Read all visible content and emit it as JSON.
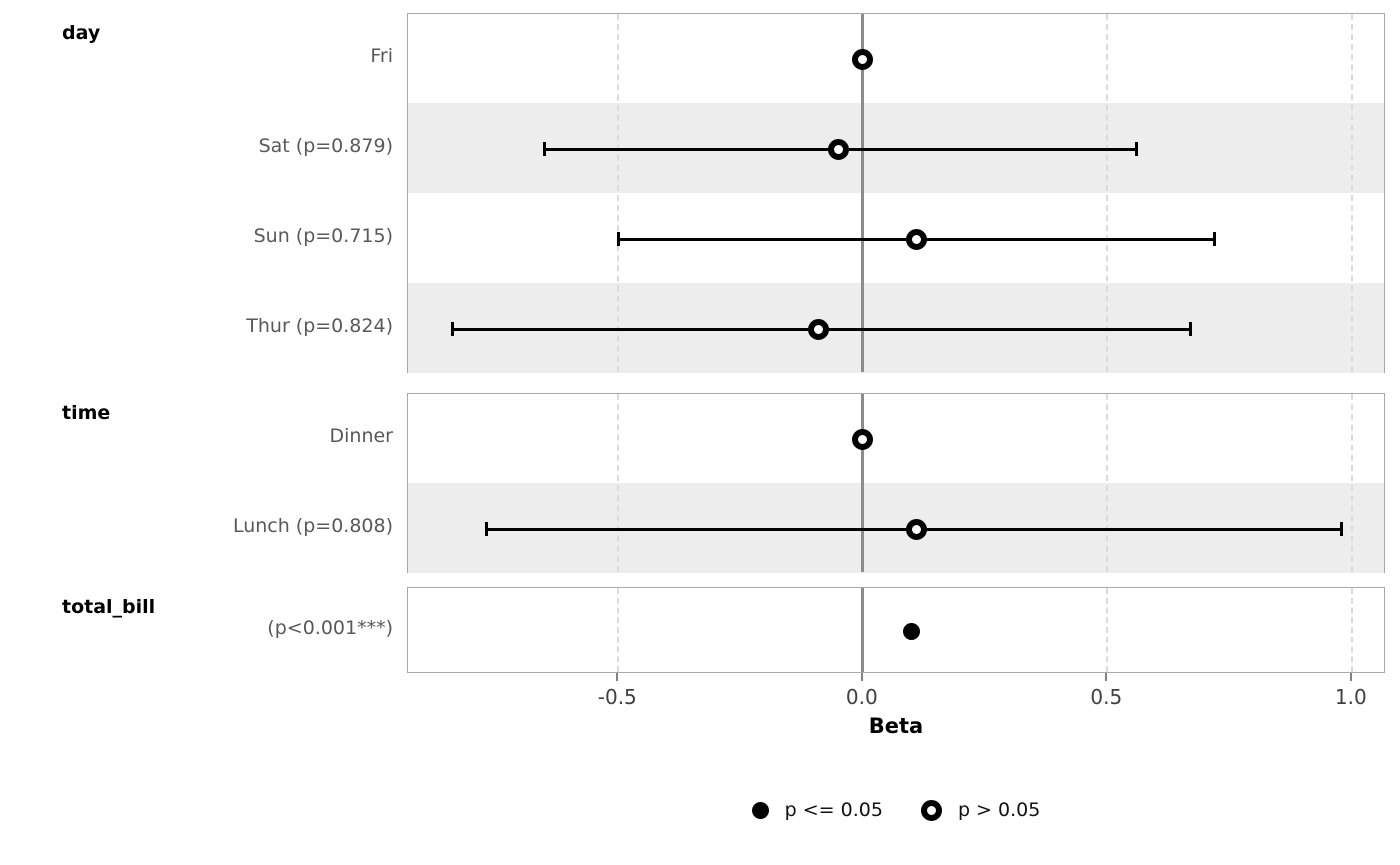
{
  "chart_data": {
    "type": "forest",
    "title": "",
    "xlabel": "Beta",
    "xlim": [
      -0.93,
      1.07
    ],
    "grid": "dashed-vertical",
    "reference_line": 0.0,
    "x_ticks": [
      {
        "value": -0.5,
        "label": "-0.5"
      },
      {
        "value": 0.0,
        "label": "0.0"
      },
      {
        "value": 0.5,
        "label": "0.5"
      },
      {
        "value": 1.0,
        "label": "1.0"
      }
    ],
    "groups": [
      {
        "label": "day",
        "rows": [
          {
            "label": "Fri",
            "estimate": 0.0,
            "ci_low": null,
            "ci_high": null,
            "p_value": null,
            "significant": false,
            "reference": true
          },
          {
            "label": "Sat (p=0.879)",
            "estimate": -0.05,
            "ci_low": -0.65,
            "ci_high": 0.56,
            "p_value": 0.879,
            "significant": false,
            "reference": false
          },
          {
            "label": "Sun (p=0.715)",
            "estimate": 0.11,
            "ci_low": -0.5,
            "ci_high": 0.72,
            "p_value": 0.715,
            "significant": false,
            "reference": false
          },
          {
            "label": "Thur (p=0.824)",
            "estimate": -0.09,
            "ci_low": -0.84,
            "ci_high": 0.67,
            "p_value": 0.824,
            "significant": false,
            "reference": false
          }
        ]
      },
      {
        "label": "time",
        "rows": [
          {
            "label": "Dinner",
            "estimate": 0.0,
            "ci_low": null,
            "ci_high": null,
            "p_value": null,
            "significant": false,
            "reference": true
          },
          {
            "label": "Lunch (p=0.808)",
            "estimate": 0.11,
            "ci_low": -0.77,
            "ci_high": 0.98,
            "p_value": 0.808,
            "significant": false,
            "reference": false
          }
        ]
      },
      {
        "label": "total_bill",
        "rows": [
          {
            "label": "(p<0.001***)",
            "estimate": 0.1,
            "ci_low": null,
            "ci_high": null,
            "p_value": "<0.001",
            "significant": true,
            "reference": false
          }
        ]
      }
    ],
    "legend": [
      {
        "marker": "filled",
        "label": "p <= 0.05"
      },
      {
        "marker": "open",
        "label": "p > 0.05"
      }
    ],
    "colors": {
      "marker": "#000000",
      "stripe": "#ededed",
      "panel_border": "#a9a9a9",
      "zero_line": "#8c8c8c",
      "gridline": "#dbdbdb",
      "row_label": "#595959",
      "tick_label": "#404040",
      "header": "#000000"
    }
  }
}
